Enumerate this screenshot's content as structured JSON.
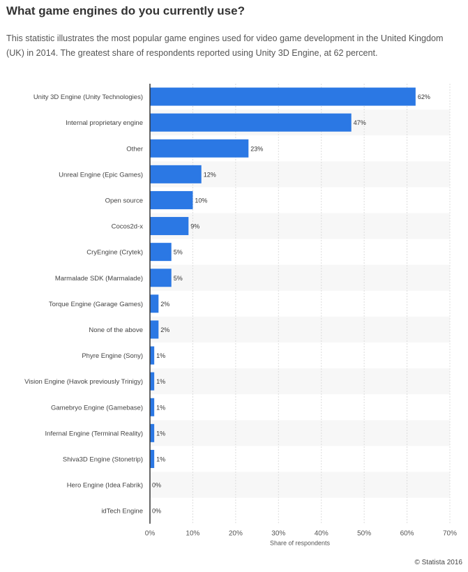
{
  "header": {
    "title": "What game engines do you currently use?",
    "description": "This statistic illustrates the most popular game engines used for video game development in the United Kingdom (UK) in 2014. The greatest share of respondents reported using Unity 3D Engine, at 62 percent."
  },
  "credit": "© Statista 2016",
  "colors": {
    "bar": "#2b78e4",
    "stripe": "#f7f7f7",
    "grid": "#dddddd"
  },
  "chart_data": {
    "type": "bar",
    "orientation": "horizontal",
    "categories": [
      "Unity 3D Engine (Unity Technologies)",
      "Internal proprietary engine",
      "Other",
      "Unreal Engine (Epic Games)",
      "Open source",
      "Cocos2d-x",
      "CryEngine (Crytek)",
      "Marmalade SDK (Marmalade)",
      "Torque Engine (Garage Games)",
      "None of the above",
      "Phyre Engine (Sony)",
      "Vision Engine (Havok previously Trinigy)",
      "Gamebryo Engine (Gamebase)",
      "Infernal Engine (Terminal Reality)",
      "Shiva3D Engine (Stonetrip)",
      "Hero Engine (Idea Fabrik)",
      "idTech Engine"
    ],
    "values": [
      62,
      47,
      23,
      12,
      10,
      9,
      5,
      5,
      2,
      2,
      1,
      1,
      1,
      1,
      1,
      0,
      0
    ],
    "data_labels": [
      "62%",
      "47%",
      "23%",
      "12%",
      "10%",
      "9%",
      "5%",
      "5%",
      "2%",
      "2%",
      "1%",
      "1%",
      "1%",
      "1%",
      "1%",
      "0%",
      "0%"
    ],
    "xlabel": "Share of respondents",
    "xlim": [
      0,
      70
    ],
    "xticks": [
      "0%",
      "10%",
      "20%",
      "30%",
      "40%",
      "50%",
      "60%",
      "70%"
    ],
    "grid": true
  }
}
